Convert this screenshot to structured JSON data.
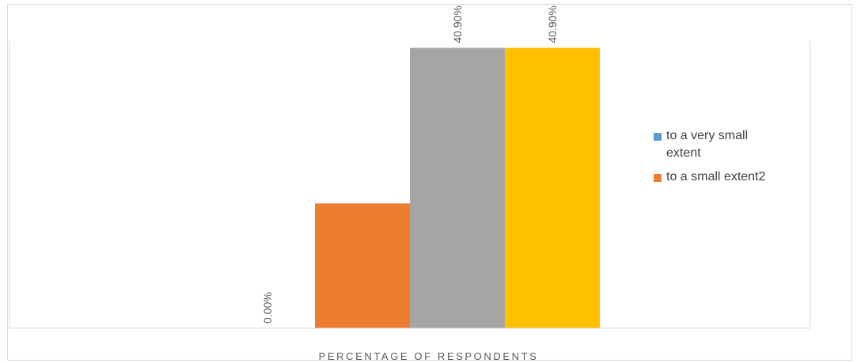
{
  "chart_data": {
    "type": "bar",
    "categories": [
      ""
    ],
    "series": [
      {
        "name": "to a very  small extent",
        "values": [
          0.0
        ],
        "label": "0.00%",
        "color": "#5B9BD5"
      },
      {
        "name": "to a small extent2",
        "values": [
          18.2
        ],
        "label": "",
        "color": "#ED7D31"
      },
      {
        "name": "",
        "values": [
          40.9
        ],
        "label": "40.90%",
        "color": "#A5A5A5"
      },
      {
        "name": "",
        "values": [
          40.9
        ],
        "label": "40.90%",
        "color": "#FFC000"
      }
    ],
    "legend_items": [
      {
        "lines": [
          "to a very  small",
          "extent"
        ],
        "color": "#5B9BD5"
      },
      {
        "lines": [
          "to a small extent2"
        ],
        "color": "#ED7D31"
      }
    ],
    "xlabel": "PERCENTAGE OF RESPONDENTS",
    "ylim": [
      0,
      42
    ],
    "legend_position": "right",
    "grid": false
  }
}
